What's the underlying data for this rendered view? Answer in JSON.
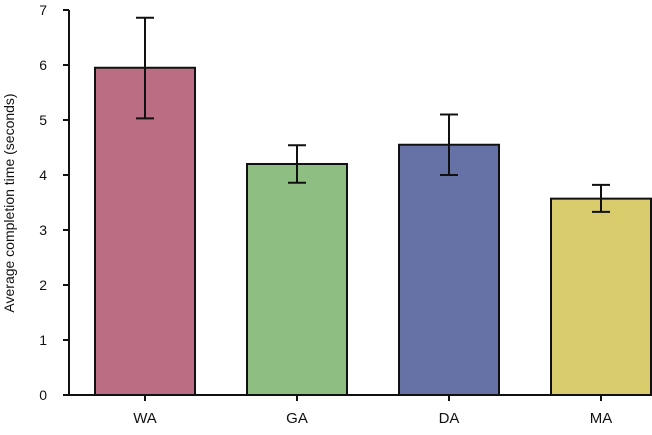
{
  "chart_data": {
    "type": "bar",
    "title": "",
    "xlabel": "",
    "ylabel": "Average completion time (seconds)",
    "ylim": [
      0,
      7
    ],
    "yticks": [
      0,
      1,
      2,
      3,
      4,
      5,
      6,
      7
    ],
    "grid": false,
    "categories": [
      "WA",
      "GA",
      "DA",
      "MA"
    ],
    "values": [
      5.95,
      4.2,
      4.55,
      3.57
    ],
    "error_low": [
      5.03,
      3.86,
      4.0,
      3.33
    ],
    "error_high": [
      6.86,
      4.54,
      5.1,
      3.82
    ],
    "colors": [
      "#bb6d83",
      "#8fbe83",
      "#6672a6",
      "#d8cc6d"
    ]
  }
}
